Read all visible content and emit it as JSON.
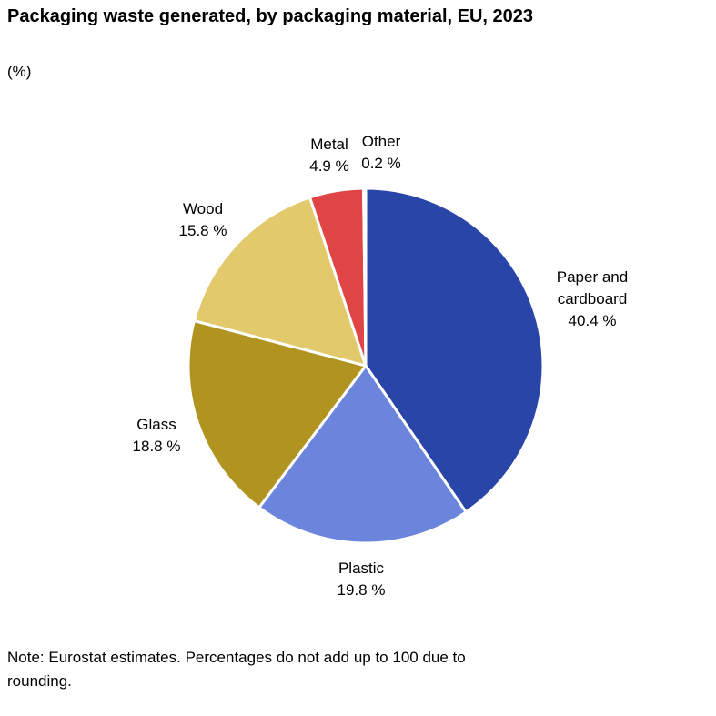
{
  "chart_data": {
    "type": "pie",
    "title": "Packaging waste generated, by packaging material, EU, 2023",
    "unit": "(%)",
    "note": "Note: Eurostat estimates. Percentages do not add up to 100 due to rounding.",
    "slices": [
      {
        "name": "Paper and cardboard",
        "label_lines": [
          "Paper and",
          "cardboard"
        ],
        "value": 40.4,
        "value_label": "40.4 %",
        "color": "#2a45a8"
      },
      {
        "name": "Plastic",
        "label_lines": [
          "Plastic"
        ],
        "value": 19.8,
        "value_label": "19.8 %",
        "color": "#6b85dd"
      },
      {
        "name": "Glass",
        "label_lines": [
          "Glass"
        ],
        "value": 18.8,
        "value_label": "18.8 %",
        "color": "#b0941f"
      },
      {
        "name": "Wood",
        "label_lines": [
          "Wood"
        ],
        "value": 15.8,
        "value_label": "15.8 %",
        "color": "#e2c96b"
      },
      {
        "name": "Metal",
        "label_lines": [
          "Metal"
        ],
        "value": 4.9,
        "value_label": "4.9 %",
        "color": "#e04545"
      },
      {
        "name": "Other",
        "label_lines": [
          "Other"
        ],
        "value": 0.2,
        "value_label": "0.2 %",
        "color": "#e8e8e8"
      }
    ]
  }
}
